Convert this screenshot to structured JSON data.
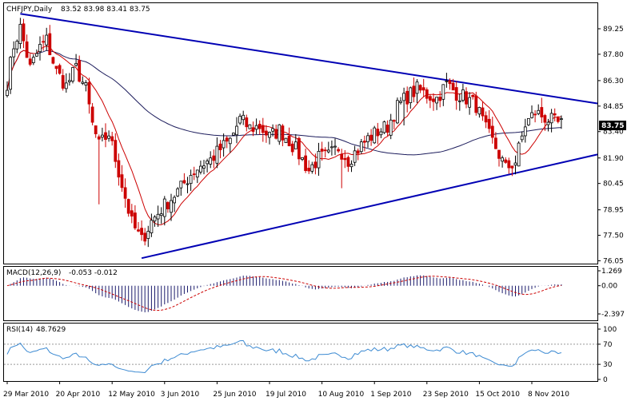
{
  "chart_data": [
    {
      "type": "candlestick",
      "title": "CHFJPY,Daily",
      "ohlc_label": "83.52 83.98 83.41 83.75",
      "last_price": "83.75",
      "ylim": [
        76.05,
        91.0
      ],
      "y_ticks": [
        "89.25",
        "87.80",
        "86.30",
        "84.85",
        "83.40",
        "81.90",
        "80.45",
        "78.95",
        "77.50",
        "76.05"
      ],
      "x_tick_labels": [
        "29 Mar 2010",
        "20 Apr 2010",
        "12 May 2010",
        "3 Jun 2010",
        "25 Jun 2010",
        "19 Jul 2010",
        "10 Aug 2010",
        "1 Sep 2010",
        "23 Sep 2010",
        "15 Oct 2010",
        "8 Nov 2010"
      ],
      "x_tick_index": [
        0,
        16,
        32,
        48,
        64,
        80,
        96,
        112,
        128,
        144,
        160
      ],
      "bar_count": 170,
      "close_anchors": [
        [
          0,
          86.2
        ],
        [
          2,
          88.3
        ],
        [
          4,
          89.3
        ],
        [
          7,
          87.0
        ],
        [
          10,
          88.2
        ],
        [
          12,
          88.6
        ],
        [
          15,
          86.8
        ],
        [
          18,
          86.0
        ],
        [
          21,
          87.0
        ],
        [
          24,
          85.8
        ],
        [
          26,
          83.8
        ],
        [
          28,
          82.6
        ],
        [
          31,
          83.3
        ],
        [
          35,
          80.4
        ],
        [
          38,
          78.2
        ],
        [
          41,
          77.2
        ],
        [
          44,
          78.3
        ],
        [
          47,
          79.0
        ],
        [
          50,
          79.6
        ],
        [
          53,
          80.2
        ],
        [
          56,
          81.0
        ],
        [
          59,
          81.5
        ],
        [
          62,
          81.8
        ],
        [
          65,
          82.4
        ],
        [
          68,
          82.9
        ],
        [
          71,
          84.1
        ],
        [
          74,
          83.6
        ],
        [
          77,
          83.7
        ],
        [
          80,
          83.1
        ],
        [
          83,
          83.5
        ],
        [
          86,
          82.9
        ],
        [
          89,
          82.1
        ],
        [
          92,
          81.2
        ],
        [
          95,
          81.9
        ],
        [
          98,
          82.0
        ],
        [
          101,
          82.5
        ],
        [
          104,
          81.8
        ],
        [
          107,
          82.4
        ],
        [
          110,
          83.0
        ],
        [
          113,
          83.4
        ],
        [
          116,
          83.7
        ],
        [
          119,
          84.8
        ],
        [
          122,
          85.4
        ],
        [
          125,
          85.8
        ],
        [
          128,
          85.5
        ],
        [
          131,
          85.3
        ],
        [
          134,
          86.1
        ],
        [
          137,
          85.6
        ],
        [
          140,
          85.3
        ],
        [
          143,
          84.9
        ],
        [
          146,
          83.5
        ],
        [
          149,
          82.5
        ],
        [
          152,
          81.3
        ],
        [
          155,
          81.7
        ],
        [
          158,
          83.8
        ],
        [
          161,
          84.5
        ],
        [
          164,
          84.2
        ],
        [
          167,
          83.9
        ],
        [
          170,
          83.75
        ]
      ],
      "ma_short_period": "10",
      "ma_long_period": "100",
      "trendlines": [
        {
          "name": "upper",
          "points": [
            [
              4,
              90.1
            ],
            [
              181,
              85.0
            ]
          ],
          "color": "#0000b4"
        },
        {
          "name": "lower",
          "points": [
            [
              41,
              76.2
            ],
            [
              181,
              82.1
            ]
          ],
          "color": "#0000b4"
        }
      ]
    },
    {
      "type": "bar",
      "title": "MACD(12,26,9) -0.053 -0.012",
      "label": "MACD(12,26,9)",
      "values_label": "-0.053 -0.012",
      "ylim": [
        -2.397,
        1.269
      ],
      "y_ticks": [
        "1.269",
        "0.00",
        "-2.397"
      ],
      "signal_style": "dashed red"
    },
    {
      "type": "line",
      "title": "RSI(14) 48.7629",
      "label": "RSI(14)",
      "value": "48.7629",
      "ylim": [
        0,
        100
      ],
      "y_ticks": [
        "100",
        "70",
        "30",
        "0"
      ],
      "levels": [
        70,
        30
      ]
    }
  ],
  "colors": {
    "candle_up": "#000000",
    "candle_down": "#cc0000",
    "ma_short": "#cc0000",
    "ma_long": "#1c1c5c",
    "trendline": "#0000b4",
    "macd_hist": "#1c1c6c",
    "macd_signal": "#cc0000",
    "rsi_line": "#3c8ad2",
    "price_box": "#000000"
  }
}
